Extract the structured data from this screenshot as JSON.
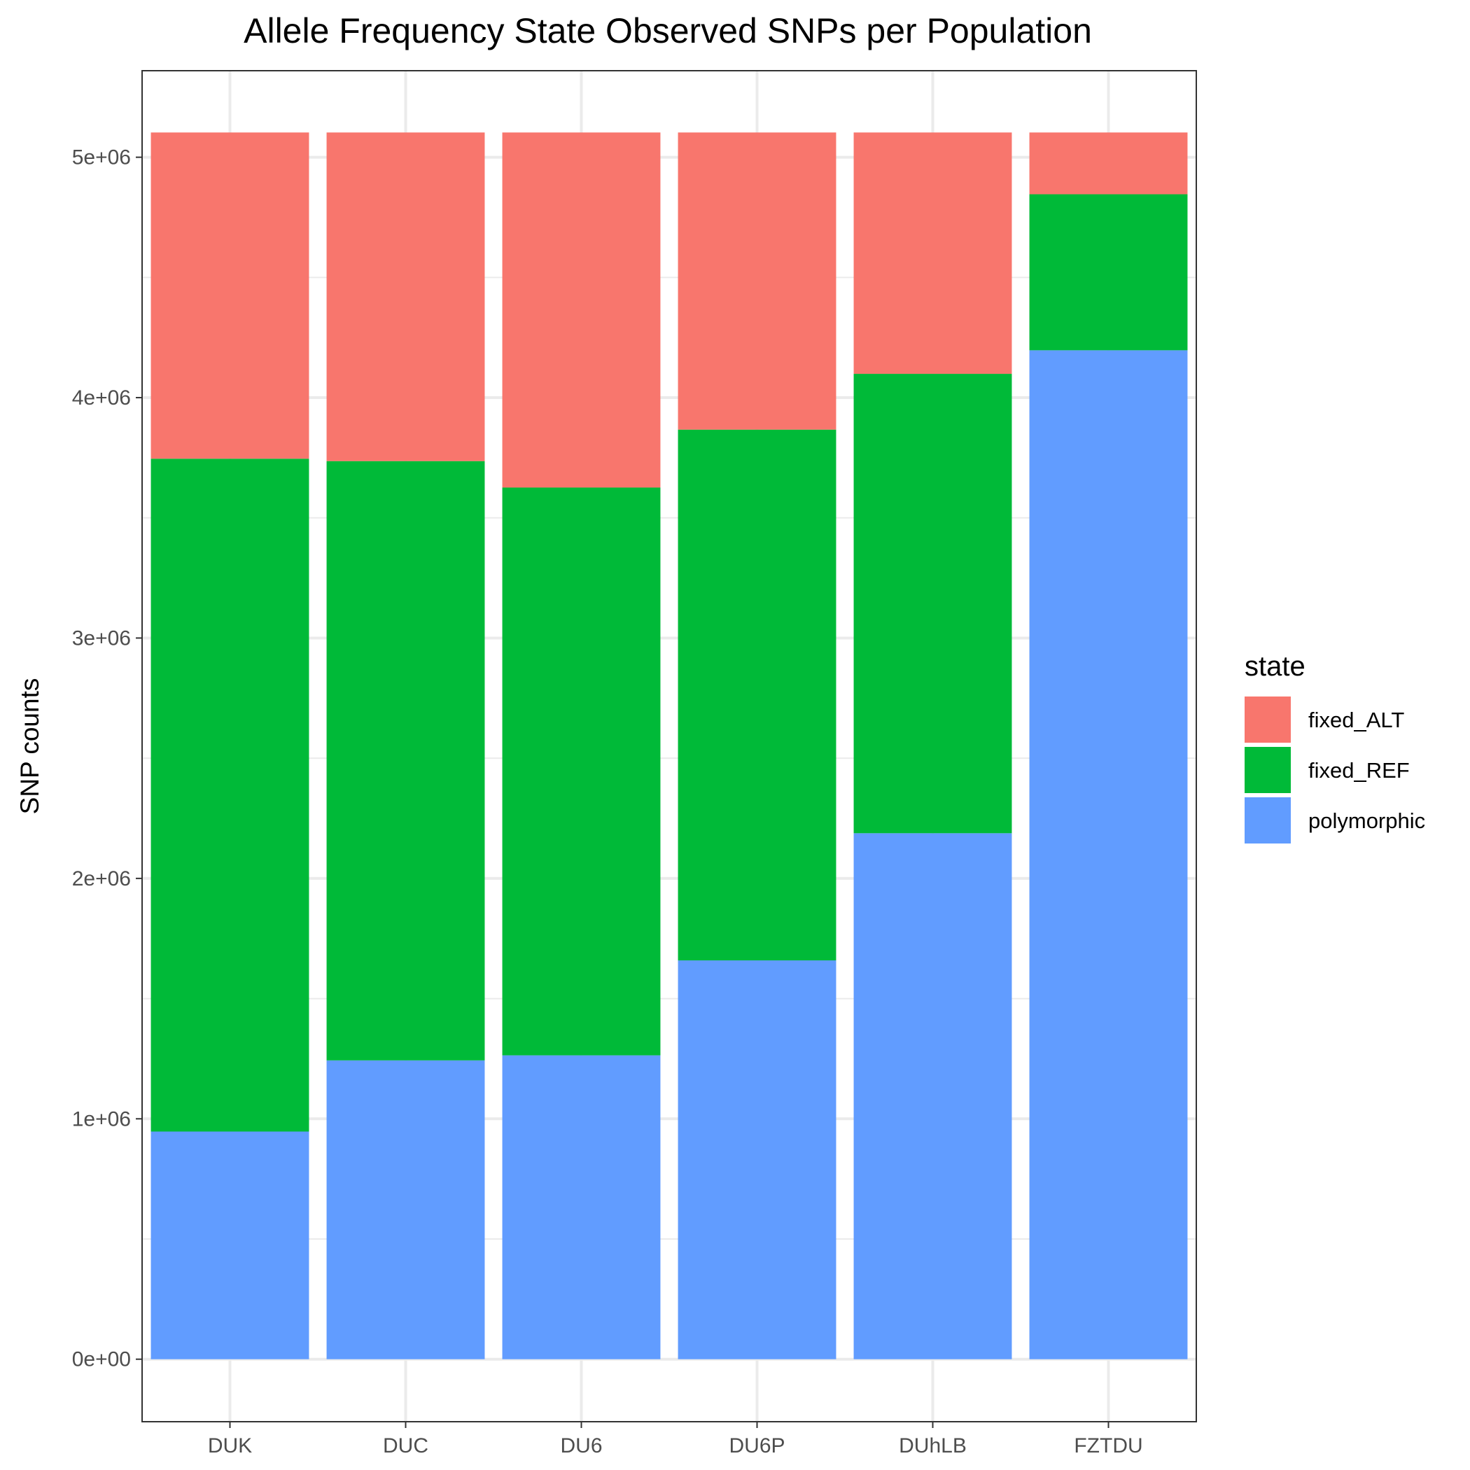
{
  "chart_data": {
    "type": "bar",
    "stacked": true,
    "title": "Allele Frequency State Observed SNPs per Population",
    "xlabel": "",
    "ylabel": "SNP counts",
    "categories": [
      "DUK",
      "DUC",
      "DU6",
      "DU6P",
      "DUhLB",
      "FZTDU"
    ],
    "series": [
      {
        "name": "polymorphic",
        "color": "#619CFF",
        "values": [
          947000,
          1243000,
          1264000,
          1659000,
          2188000,
          4197000
        ]
      },
      {
        "name": "fixed_REF",
        "color": "#00BA38",
        "values": [
          2799000,
          2493000,
          2362000,
          2208000,
          1911000,
          649000
        ]
      },
      {
        "name": "fixed_ALT",
        "color": "#F8766D",
        "values": [
          1357000,
          1367000,
          1477000,
          1236000,
          1004000,
          257000
        ]
      }
    ],
    "ylim": [
      -260000,
      5360000
    ],
    "yticks": [
      0,
      1000000,
      2000000,
      3000000,
      4000000,
      5000000
    ],
    "ytick_labels": [
      "0e+00",
      "1e+06",
      "2e+06",
      "3e+06",
      "4e+06",
      "5e+06"
    ],
    "grid": true,
    "legend": {
      "title": "state",
      "placement": "right",
      "order": [
        "fixed_ALT",
        "fixed_REF",
        "polymorphic"
      ]
    }
  }
}
